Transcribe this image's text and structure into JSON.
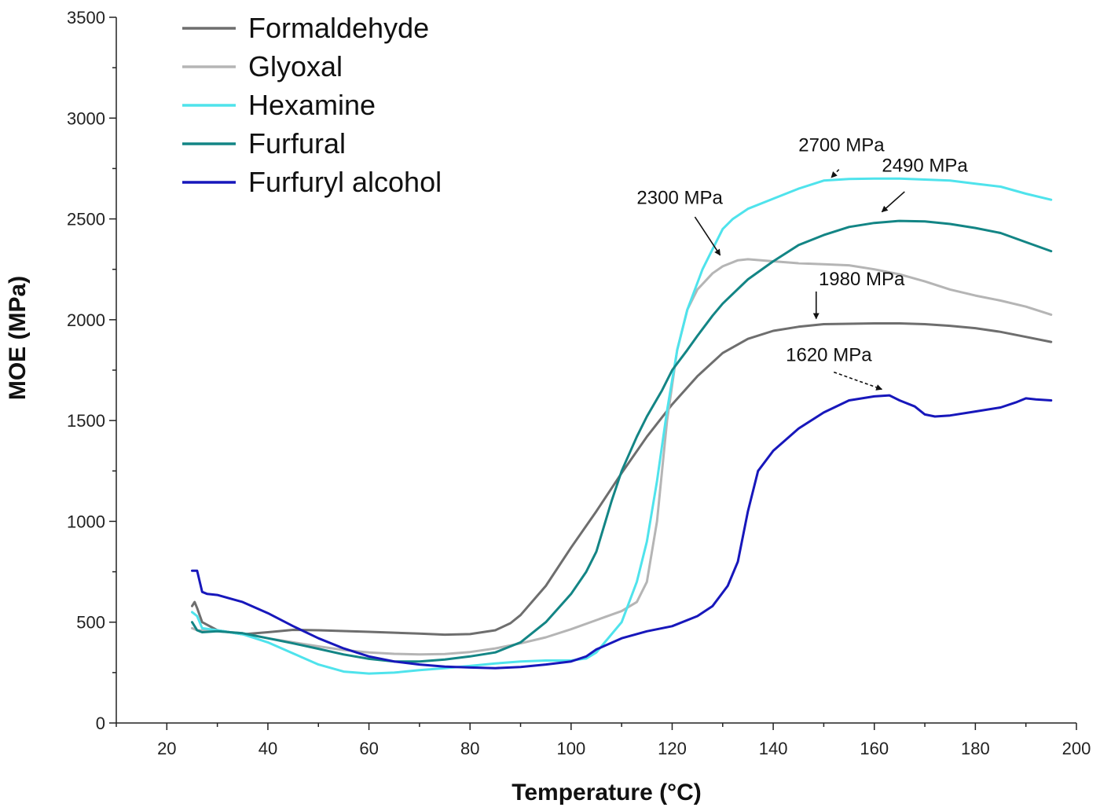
{
  "chart_data": {
    "type": "line",
    "title": "",
    "xlabel": "Temperature (°C)",
    "ylabel": "MOE (MPa)",
    "xlim": [
      10,
      200
    ],
    "ylim": [
      0,
      3500
    ],
    "xticks": [
      20,
      40,
      60,
      80,
      100,
      120,
      140,
      160,
      180,
      200
    ],
    "yticks": [
      0,
      500,
      1000,
      1500,
      2000,
      2500,
      3000,
      3500
    ],
    "grid": false,
    "legend_position": "top-left",
    "series": [
      {
        "name": "Formaldehyde",
        "color": "#6e6e6e",
        "points": [
          [
            25,
            580
          ],
          [
            25.5,
            600
          ],
          [
            26,
            570
          ],
          [
            27,
            500
          ],
          [
            30,
            460
          ],
          [
            35,
            440
          ],
          [
            40,
            450
          ],
          [
            45,
            462
          ],
          [
            50,
            460
          ],
          [
            60,
            452
          ],
          [
            70,
            443
          ],
          [
            75,
            438
          ],
          [
            80,
            441
          ],
          [
            85,
            460
          ],
          [
            88,
            495
          ],
          [
            90,
            535
          ],
          [
            95,
            680
          ],
          [
            100,
            870
          ],
          [
            105,
            1050
          ],
          [
            110,
            1240
          ],
          [
            115,
            1420
          ],
          [
            120,
            1580
          ],
          [
            125,
            1720
          ],
          [
            130,
            1835
          ],
          [
            135,
            1905
          ],
          [
            140,
            1945
          ],
          [
            145,
            1965
          ],
          [
            150,
            1978
          ],
          [
            155,
            1980
          ],
          [
            160,
            1982
          ],
          [
            165,
            1982
          ],
          [
            170,
            1978
          ],
          [
            175,
            1970
          ],
          [
            180,
            1958
          ],
          [
            185,
            1940
          ],
          [
            190,
            1915
          ],
          [
            195,
            1890
          ]
        ]
      },
      {
        "name": "Glyoxal",
        "color": "#b5b5b5",
        "points": [
          [
            25,
            470
          ],
          [
            26,
            460
          ],
          [
            30,
            455
          ],
          [
            35,
            445
          ],
          [
            40,
            420
          ],
          [
            45,
            400
          ],
          [
            50,
            380
          ],
          [
            55,
            362
          ],
          [
            60,
            350
          ],
          [
            65,
            343
          ],
          [
            70,
            340
          ],
          [
            75,
            342
          ],
          [
            80,
            352
          ],
          [
            85,
            370
          ],
          [
            90,
            395
          ],
          [
            95,
            425
          ],
          [
            100,
            465
          ],
          [
            105,
            510
          ],
          [
            110,
            555
          ],
          [
            113,
            600
          ],
          [
            115,
            700
          ],
          [
            117,
            1000
          ],
          [
            119,
            1500
          ],
          [
            121,
            1850
          ],
          [
            123,
            2050
          ],
          [
            125,
            2150
          ],
          [
            128,
            2230
          ],
          [
            130,
            2265
          ],
          [
            133,
            2295
          ],
          [
            135,
            2300
          ],
          [
            140,
            2290
          ],
          [
            145,
            2280
          ],
          [
            150,
            2275
          ],
          [
            155,
            2270
          ],
          [
            160,
            2250
          ],
          [
            165,
            2225
          ],
          [
            170,
            2190
          ],
          [
            175,
            2150
          ],
          [
            180,
            2120
          ],
          [
            185,
            2095
          ],
          [
            190,
            2065
          ],
          [
            195,
            2025
          ]
        ]
      },
      {
        "name": "Hexamine",
        "color": "#4fe3ec",
        "points": [
          [
            25,
            550
          ],
          [
            26,
            530
          ],
          [
            27,
            470
          ],
          [
            30,
            460
          ],
          [
            35,
            440
          ],
          [
            40,
            400
          ],
          [
            45,
            345
          ],
          [
            50,
            290
          ],
          [
            55,
            255
          ],
          [
            60,
            245
          ],
          [
            65,
            250
          ],
          [
            70,
            262
          ],
          [
            75,
            272
          ],
          [
            80,
            283
          ],
          [
            85,
            295
          ],
          [
            90,
            305
          ],
          [
            95,
            310
          ],
          [
            100,
            310
          ],
          [
            103,
            320
          ],
          [
            105,
            350
          ],
          [
            110,
            500
          ],
          [
            113,
            700
          ],
          [
            115,
            900
          ],
          [
            117,
            1200
          ],
          [
            119,
            1550
          ],
          [
            121,
            1850
          ],
          [
            123,
            2050
          ],
          [
            126,
            2250
          ],
          [
            128,
            2350
          ],
          [
            130,
            2450
          ],
          [
            132,
            2500
          ],
          [
            135,
            2550
          ],
          [
            140,
            2600
          ],
          [
            145,
            2650
          ],
          [
            150,
            2690
          ],
          [
            155,
            2698
          ],
          [
            160,
            2700
          ],
          [
            165,
            2700
          ],
          [
            170,
            2695
          ],
          [
            175,
            2690
          ],
          [
            180,
            2675
          ],
          [
            185,
            2660
          ],
          [
            190,
            2625
          ],
          [
            195,
            2595
          ]
        ]
      },
      {
        "name": "Furfural",
        "color": "#138585",
        "points": [
          [
            25,
            500
          ],
          [
            26,
            460
          ],
          [
            27,
            450
          ],
          [
            30,
            455
          ],
          [
            35,
            445
          ],
          [
            40,
            420
          ],
          [
            45,
            395
          ],
          [
            50,
            368
          ],
          [
            55,
            340
          ],
          [
            60,
            318
          ],
          [
            65,
            305
          ],
          [
            70,
            305
          ],
          [
            75,
            315
          ],
          [
            80,
            330
          ],
          [
            85,
            350
          ],
          [
            90,
            400
          ],
          [
            95,
            500
          ],
          [
            100,
            640
          ],
          [
            103,
            750
          ],
          [
            105,
            850
          ],
          [
            108,
            1100
          ],
          [
            110,
            1250
          ],
          [
            113,
            1420
          ],
          [
            115,
            1520
          ],
          [
            118,
            1650
          ],
          [
            120,
            1750
          ],
          [
            123,
            1850
          ],
          [
            125,
            1920
          ],
          [
            128,
            2020
          ],
          [
            130,
            2080
          ],
          [
            135,
            2200
          ],
          [
            140,
            2290
          ],
          [
            145,
            2370
          ],
          [
            150,
            2420
          ],
          [
            155,
            2460
          ],
          [
            160,
            2480
          ],
          [
            165,
            2490
          ],
          [
            170,
            2488
          ],
          [
            175,
            2475
          ],
          [
            180,
            2455
          ],
          [
            185,
            2430
          ],
          [
            190,
            2385
          ],
          [
            195,
            2340
          ]
        ]
      },
      {
        "name": "Furfuryl alcohol",
        "color": "#1717bb",
        "points": [
          [
            25,
            755
          ],
          [
            26,
            755
          ],
          [
            27,
            650
          ],
          [
            28,
            640
          ],
          [
            30,
            635
          ],
          [
            35,
            600
          ],
          [
            40,
            545
          ],
          [
            45,
            480
          ],
          [
            50,
            420
          ],
          [
            55,
            370
          ],
          [
            60,
            330
          ],
          [
            65,
            305
          ],
          [
            70,
            290
          ],
          [
            75,
            280
          ],
          [
            80,
            275
          ],
          [
            85,
            272
          ],
          [
            90,
            278
          ],
          [
            95,
            290
          ],
          [
            100,
            305
          ],
          [
            103,
            330
          ],
          [
            105,
            365
          ],
          [
            110,
            420
          ],
          [
            115,
            455
          ],
          [
            120,
            480
          ],
          [
            125,
            530
          ],
          [
            128,
            580
          ],
          [
            131,
            680
          ],
          [
            133,
            800
          ],
          [
            135,
            1050
          ],
          [
            137,
            1250
          ],
          [
            140,
            1350
          ],
          [
            145,
            1460
          ],
          [
            150,
            1540
          ],
          [
            155,
            1600
          ],
          [
            160,
            1620
          ],
          [
            163,
            1625
          ],
          [
            165,
            1600
          ],
          [
            168,
            1570
          ],
          [
            170,
            1530
          ],
          [
            172,
            1520
          ],
          [
            175,
            1525
          ],
          [
            180,
            1545
          ],
          [
            185,
            1565
          ],
          [
            188,
            1590
          ],
          [
            190,
            1610
          ],
          [
            192,
            1605
          ],
          [
            195,
            1600
          ]
        ]
      }
    ],
    "annotations": [
      {
        "text": "2700 MPa",
        "label_at": [
          153.5,
          2835
        ],
        "arrow_from": [
          153,
          2745
        ],
        "arrow_to": [
          151.5,
          2705
        ],
        "style": "dashed"
      },
      {
        "text": "2490 MPa",
        "label_at": [
          170,
          2735
        ],
        "arrow_from": [
          166,
          2635
        ],
        "arrow_to": [
          161.5,
          2535
        ],
        "style": "solid"
      },
      {
        "text": "2300 MPa",
        "label_at": [
          121.5,
          2575
        ],
        "arrow_from": [
          124.5,
          2510
        ],
        "arrow_to": [
          129.5,
          2320
        ],
        "style": "solid"
      },
      {
        "text": "1980 MPa",
        "label_at": [
          157.5,
          2170
        ],
        "arrow_from": [
          148.5,
          2140
        ],
        "arrow_to": [
          148.5,
          2005
        ],
        "style": "solid"
      },
      {
        "text": "1620 MPa",
        "label_at": [
          151,
          1795
        ],
        "arrow_from": [
          152,
          1740
        ],
        "arrow_to": [
          161.5,
          1655
        ],
        "style": "dashed"
      }
    ]
  }
}
